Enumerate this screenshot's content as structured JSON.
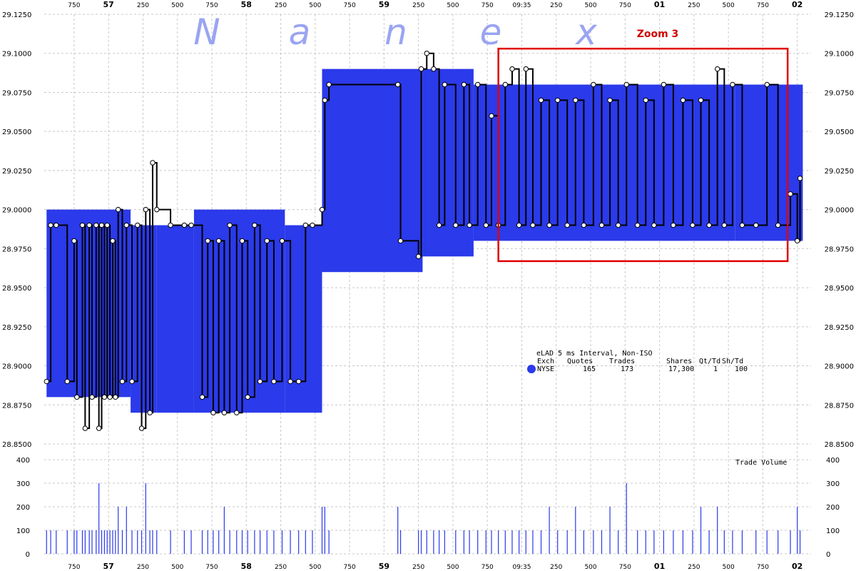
{
  "chart_data": [
    {
      "type": "line",
      "title": "",
      "watermark": [
        "N",
        "a",
        "n",
        "e",
        "x"
      ],
      "y_axis_labels": [
        "29.1250",
        "29.1000",
        "29.0750",
        "29.0500",
        "29.0250",
        "29.0000",
        "28.9750",
        "28.9500",
        "28.9250",
        "28.9000",
        "28.8750",
        "28.8500"
      ],
      "ylim": [
        28.85,
        29.125
      ],
      "x_axis_labels": [
        {
          "t": 0.75,
          "label": "750",
          "major": false
        },
        {
          "t": 1.0,
          "label": "57",
          "major": true
        },
        {
          "t": 1.25,
          "label": "250",
          "major": false
        },
        {
          "t": 1.5,
          "label": "500",
          "major": false
        },
        {
          "t": 1.75,
          "label": "750",
          "major": false
        },
        {
          "t": 2.0,
          "label": "58",
          "major": true
        },
        {
          "t": 2.25,
          "label": "250",
          "major": false
        },
        {
          "t": 2.5,
          "label": "500",
          "major": false
        },
        {
          "t": 2.75,
          "label": "750",
          "major": false
        },
        {
          "t": 3.0,
          "label": "59",
          "major": true
        },
        {
          "t": 3.25,
          "label": "250",
          "major": false
        },
        {
          "t": 3.5,
          "label": "500",
          "major": false
        },
        {
          "t": 3.75,
          "label": "750",
          "major": false
        },
        {
          "t": 4.0,
          "label": "09:35",
          "major": false
        },
        {
          "t": 4.25,
          "label": "250",
          "major": false
        },
        {
          "t": 4.5,
          "label": "500",
          "major": false
        },
        {
          "t": 4.75,
          "label": "750",
          "major": false
        },
        {
          "t": 5.0,
          "label": "01",
          "major": true
        },
        {
          "t": 5.25,
          "label": "250",
          "major": false
        },
        {
          "t": 5.5,
          "label": "500",
          "major": false
        },
        {
          "t": 5.75,
          "label": "750",
          "major": false
        },
        {
          "t": 6.0,
          "label": "02",
          "major": true
        }
      ],
      "xlim": [
        0.533,
        6.1
      ],
      "series": [
        {
          "color": "#2b3aea",
          "quote_bands": [
            {
              "t0": 0.55,
              "t1": 1.16,
              "bid": 28.88,
              "ask": 29.0
            },
            {
              "t0": 1.16,
              "t1": 1.35,
              "bid": 28.87,
              "ask": 28.99
            },
            {
              "t0": 1.35,
              "t1": 1.62,
              "bid": 28.87,
              "ask": 28.99
            },
            {
              "t0": 1.62,
              "t1": 2.28,
              "bid": 28.87,
              "ask": 29.0
            },
            {
              "t0": 2.28,
              "t1": 2.55,
              "bid": 28.87,
              "ask": 28.99
            },
            {
              "t0": 2.55,
              "t1": 3.28,
              "bid": 28.96,
              "ask": 29.09
            },
            {
              "t0": 3.28,
              "t1": 3.65,
              "bid": 28.97,
              "ask": 29.09
            },
            {
              "t0": 3.65,
              "t1": 4.0,
              "bid": 28.98,
              "ask": 29.08
            },
            {
              "t0": 4.0,
              "t1": 5.55,
              "bid": 28.98,
              "ask": 29.08
            },
            {
              "t0": 5.55,
              "t1": 6.04,
              "bid": 28.98,
              "ask": 29.08
            }
          ],
          "trade_prices": [
            {
              "t": 0.55,
              "p": 28.89
            },
            {
              "t": 0.58,
              "p": 28.99
            },
            {
              "t": 0.62,
              "p": 28.99
            },
            {
              "t": 0.7,
              "p": 28.89
            },
            {
              "t": 0.75,
              "p": 28.98
            },
            {
              "t": 0.77,
              "p": 28.88
            },
            {
              "t": 0.81,
              "p": 28.99
            },
            {
              "t": 0.83,
              "p": 28.86
            },
            {
              "t": 0.86,
              "p": 28.99
            },
            {
              "t": 0.88,
              "p": 28.88
            },
            {
              "t": 0.91,
              "p": 28.99
            },
            {
              "t": 0.93,
              "p": 28.86
            },
            {
              "t": 0.95,
              "p": 28.99
            },
            {
              "t": 0.97,
              "p": 28.88
            },
            {
              "t": 0.99,
              "p": 28.99
            },
            {
              "t": 1.01,
              "p": 28.88
            },
            {
              "t": 1.03,
              "p": 28.98
            },
            {
              "t": 1.05,
              "p": 28.88
            },
            {
              "t": 1.07,
              "p": 29.0
            },
            {
              "t": 1.1,
              "p": 28.89
            },
            {
              "t": 1.13,
              "p": 28.99
            },
            {
              "t": 1.17,
              "p": 28.89
            },
            {
              "t": 1.21,
              "p": 28.99
            },
            {
              "t": 1.24,
              "p": 28.86
            },
            {
              "t": 1.27,
              "p": 29.0
            },
            {
              "t": 1.3,
              "p": 28.87
            },
            {
              "t": 1.32,
              "p": 29.03
            },
            {
              "t": 1.35,
              "p": 29.0
            },
            {
              "t": 1.45,
              "p": 28.99
            },
            {
              "t": 1.55,
              "p": 28.99
            },
            {
              "t": 1.6,
              "p": 28.99
            },
            {
              "t": 1.68,
              "p": 28.88
            },
            {
              "t": 1.72,
              "p": 28.98
            },
            {
              "t": 1.76,
              "p": 28.87
            },
            {
              "t": 1.8,
              "p": 28.98
            },
            {
              "t": 1.84,
              "p": 28.87
            },
            {
              "t": 1.88,
              "p": 28.99
            },
            {
              "t": 1.93,
              "p": 28.87
            },
            {
              "t": 1.97,
              "p": 28.98
            },
            {
              "t": 2.01,
              "p": 28.88
            },
            {
              "t": 2.06,
              "p": 28.99
            },
            {
              "t": 2.1,
              "p": 28.89
            },
            {
              "t": 2.15,
              "p": 28.98
            },
            {
              "t": 2.2,
              "p": 28.89
            },
            {
              "t": 2.26,
              "p": 28.98
            },
            {
              "t": 2.32,
              "p": 28.89
            },
            {
              "t": 2.38,
              "p": 28.89
            },
            {
              "t": 2.43,
              "p": 28.99
            },
            {
              "t": 2.48,
              "p": 28.99
            },
            {
              "t": 2.55,
              "p": 29.0
            },
            {
              "t": 2.57,
              "p": 29.07
            },
            {
              "t": 2.6,
              "p": 29.08
            },
            {
              "t": 3.1,
              "p": 29.08
            },
            {
              "t": 3.12,
              "p": 28.98
            },
            {
              "t": 3.25,
              "p": 28.97
            },
            {
              "t": 3.27,
              "p": 29.09
            },
            {
              "t": 3.31,
              "p": 29.1
            },
            {
              "t": 3.36,
              "p": 29.09
            },
            {
              "t": 3.4,
              "p": 28.99
            },
            {
              "t": 3.44,
              "p": 29.08
            },
            {
              "t": 3.52,
              "p": 28.99
            },
            {
              "t": 3.58,
              "p": 29.08
            },
            {
              "t": 3.62,
              "p": 28.99
            },
            {
              "t": 3.68,
              "p": 29.08
            },
            {
              "t": 3.74,
              "p": 28.99
            },
            {
              "t": 3.78,
              "p": 29.06
            },
            {
              "t": 3.83,
              "p": 28.99
            },
            {
              "t": 3.88,
              "p": 29.08
            },
            {
              "t": 3.93,
              "p": 29.09
            },
            {
              "t": 3.98,
              "p": 28.99
            },
            {
              "t": 4.03,
              "p": 29.09
            },
            {
              "t": 4.08,
              "p": 28.99
            },
            {
              "t": 4.14,
              "p": 29.07
            },
            {
              "t": 4.2,
              "p": 28.99
            },
            {
              "t": 4.26,
              "p": 29.07
            },
            {
              "t": 4.33,
              "p": 28.99
            },
            {
              "t": 4.39,
              "p": 29.07
            },
            {
              "t": 4.45,
              "p": 28.99
            },
            {
              "t": 4.52,
              "p": 29.08
            },
            {
              "t": 4.58,
              "p": 28.99
            },
            {
              "t": 4.64,
              "p": 29.07
            },
            {
              "t": 4.7,
              "p": 28.99
            },
            {
              "t": 4.76,
              "p": 29.08
            },
            {
              "t": 4.84,
              "p": 28.99
            },
            {
              "t": 4.9,
              "p": 29.07
            },
            {
              "t": 4.96,
              "p": 28.99
            },
            {
              "t": 5.03,
              "p": 29.08
            },
            {
              "t": 5.1,
              "p": 28.99
            },
            {
              "t": 5.17,
              "p": 29.07
            },
            {
              "t": 5.24,
              "p": 28.99
            },
            {
              "t": 5.3,
              "p": 29.07
            },
            {
              "t": 5.36,
              "p": 28.99
            },
            {
              "t": 5.42,
              "p": 29.09
            },
            {
              "t": 5.47,
              "p": 28.99
            },
            {
              "t": 5.53,
              "p": 29.08
            },
            {
              "t": 5.6,
              "p": 28.99
            },
            {
              "t": 5.7,
              "p": 28.99
            },
            {
              "t": 5.78,
              "p": 29.08
            },
            {
              "t": 5.86,
              "p": 28.99
            },
            {
              "t": 5.95,
              "p": 29.01
            },
            {
              "t": 6.0,
              "p": 28.98
            },
            {
              "t": 6.02,
              "p": 29.02
            }
          ]
        }
      ],
      "zoom_box": {
        "label": "Zoom 3",
        "t0": 3.83,
        "t1": 5.93,
        "p_top": 29.103,
        "p_bot": 28.967
      },
      "legend": {
        "header": "eLAD 5 ms Interval, Non-ISO",
        "columns": [
          "Exch",
          "Quotes",
          "Trades",
          "Shares",
          "Qt/Td",
          "Sh/Td"
        ],
        "row": [
          "NYSE",
          "165",
          "173",
          "17,300",
          "1",
          "100"
        ],
        "marker_color": "#2b3aea"
      },
      "grid": true
    },
    {
      "type": "bar",
      "title": "Trade Volume",
      "y_axis_labels": [
        "400",
        "300",
        "200",
        "100",
        "0"
      ],
      "ylim": [
        0,
        400
      ],
      "color": "#2b3aea",
      "volume_bars": [
        {
          "t": 0.55,
          "v": 100
        },
        {
          "t": 0.58,
          "v": 100
        },
        {
          "t": 0.62,
          "v": 100
        },
        {
          "t": 0.7,
          "v": 100
        },
        {
          "t": 0.75,
          "v": 100
        },
        {
          "t": 0.77,
          "v": 100
        },
        {
          "t": 0.81,
          "v": 100
        },
        {
          "t": 0.83,
          "v": 100
        },
        {
          "t": 0.86,
          "v": 100
        },
        {
          "t": 0.88,
          "v": 100
        },
        {
          "t": 0.91,
          "v": 100
        },
        {
          "t": 0.93,
          "v": 300
        },
        {
          "t": 0.95,
          "v": 100
        },
        {
          "t": 0.97,
          "v": 100
        },
        {
          "t": 0.99,
          "v": 100
        },
        {
          "t": 1.01,
          "v": 100
        },
        {
          "t": 1.03,
          "v": 100
        },
        {
          "t": 1.05,
          "v": 100
        },
        {
          "t": 1.07,
          "v": 200
        },
        {
          "t": 1.1,
          "v": 100
        },
        {
          "t": 1.13,
          "v": 200
        },
        {
          "t": 1.17,
          "v": 100
        },
        {
          "t": 1.21,
          "v": 100
        },
        {
          "t": 1.24,
          "v": 100
        },
        {
          "t": 1.27,
          "v": 300
        },
        {
          "t": 1.3,
          "v": 100
        },
        {
          "t": 1.32,
          "v": 100
        },
        {
          "t": 1.35,
          "v": 100
        },
        {
          "t": 1.45,
          "v": 100
        },
        {
          "t": 1.55,
          "v": 100
        },
        {
          "t": 1.6,
          "v": 100
        },
        {
          "t": 1.68,
          "v": 100
        },
        {
          "t": 1.72,
          "v": 100
        },
        {
          "t": 1.76,
          "v": 100
        },
        {
          "t": 1.8,
          "v": 100
        },
        {
          "t": 1.84,
          "v": 200
        },
        {
          "t": 1.88,
          "v": 100
        },
        {
          "t": 1.93,
          "v": 100
        },
        {
          "t": 1.97,
          "v": 100
        },
        {
          "t": 2.01,
          "v": 100
        },
        {
          "t": 2.06,
          "v": 100
        },
        {
          "t": 2.1,
          "v": 100
        },
        {
          "t": 2.15,
          "v": 100
        },
        {
          "t": 2.2,
          "v": 100
        },
        {
          "t": 2.26,
          "v": 100
        },
        {
          "t": 2.32,
          "v": 100
        },
        {
          "t": 2.38,
          "v": 100
        },
        {
          "t": 2.43,
          "v": 100
        },
        {
          "t": 2.48,
          "v": 100
        },
        {
          "t": 2.55,
          "v": 200
        },
        {
          "t": 2.57,
          "v": 200
        },
        {
          "t": 2.6,
          "v": 100
        },
        {
          "t": 3.1,
          "v": 200
        },
        {
          "t": 3.12,
          "v": 100
        },
        {
          "t": 3.25,
          "v": 100
        },
        {
          "t": 3.27,
          "v": 100
        },
        {
          "t": 3.31,
          "v": 100
        },
        {
          "t": 3.36,
          "v": 100
        },
        {
          "t": 3.4,
          "v": 100
        },
        {
          "t": 3.44,
          "v": 100
        },
        {
          "t": 3.52,
          "v": 100
        },
        {
          "t": 3.58,
          "v": 100
        },
        {
          "t": 3.62,
          "v": 100
        },
        {
          "t": 3.68,
          "v": 100
        },
        {
          "t": 3.74,
          "v": 100
        },
        {
          "t": 3.78,
          "v": 100
        },
        {
          "t": 3.83,
          "v": 100
        },
        {
          "t": 3.88,
          "v": 100
        },
        {
          "t": 3.93,
          "v": 100
        },
        {
          "t": 3.98,
          "v": 100
        },
        {
          "t": 4.03,
          "v": 100
        },
        {
          "t": 4.08,
          "v": 100
        },
        {
          "t": 4.14,
          "v": 100
        },
        {
          "t": 4.2,
          "v": 200
        },
        {
          "t": 4.26,
          "v": 100
        },
        {
          "t": 4.33,
          "v": 100
        },
        {
          "t": 4.39,
          "v": 200
        },
        {
          "t": 4.45,
          "v": 100
        },
        {
          "t": 4.52,
          "v": 100
        },
        {
          "t": 4.58,
          "v": 100
        },
        {
          "t": 4.64,
          "v": 200
        },
        {
          "t": 4.7,
          "v": 100
        },
        {
          "t": 4.76,
          "v": 300
        },
        {
          "t": 4.84,
          "v": 100
        },
        {
          "t": 4.9,
          "v": 100
        },
        {
          "t": 4.96,
          "v": 100
        },
        {
          "t": 5.03,
          "v": 100
        },
        {
          "t": 5.1,
          "v": 100
        },
        {
          "t": 5.17,
          "v": 100
        },
        {
          "t": 5.24,
          "v": 100
        },
        {
          "t": 5.3,
          "v": 200
        },
        {
          "t": 5.36,
          "v": 100
        },
        {
          "t": 5.42,
          "v": 200
        },
        {
          "t": 5.47,
          "v": 100
        },
        {
          "t": 5.53,
          "v": 100
        },
        {
          "t": 5.6,
          "v": 100
        },
        {
          "t": 5.7,
          "v": 100
        },
        {
          "t": 5.78,
          "v": 100
        },
        {
          "t": 5.86,
          "v": 100
        },
        {
          "t": 5.95,
          "v": 100
        },
        {
          "t": 6.0,
          "v": 200
        },
        {
          "t": 6.02,
          "v": 100
        }
      ],
      "grid": true
    }
  ]
}
